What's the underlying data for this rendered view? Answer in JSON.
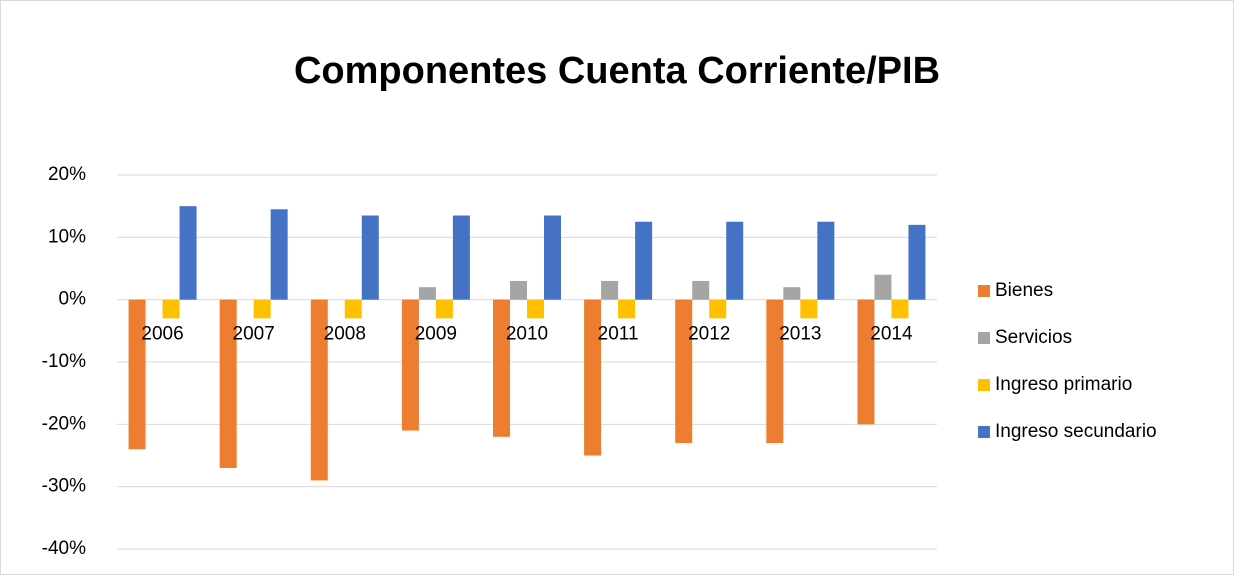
{
  "chart_data": {
    "type": "bar",
    "title": "Componentes Cuenta Corriente/PIB",
    "categories": [
      "2006",
      "2007",
      "2008",
      "2009",
      "2010",
      "2011",
      "2012",
      "2013",
      "2014"
    ],
    "series": [
      {
        "name": "Bienes",
        "color": "#ed7d31",
        "values": [
          -24,
          -27,
          -29,
          -21,
          -22,
          -25,
          -23,
          -23,
          -20
        ]
      },
      {
        "name": "Servicios",
        "color": "#a5a5a5",
        "values": [
          0,
          0,
          0,
          2,
          3,
          3,
          3,
          2,
          4
        ]
      },
      {
        "name": "Ingreso primario",
        "color": "#ffc000",
        "values": [
          -3,
          -3,
          -3,
          -3,
          -3,
          -3,
          -3,
          -3,
          -3
        ]
      },
      {
        "name": "Ingreso secundario",
        "color": "#4472c4",
        "values": [
          15,
          14.5,
          13.5,
          13.5,
          13.5,
          12.5,
          12.5,
          12.5,
          12
        ]
      }
    ],
    "ylim": [
      -40,
      20
    ],
    "yticks": [
      {
        "value": -40,
        "label": "-40%"
      },
      {
        "value": -30,
        "label": "-30%"
      },
      {
        "value": -20,
        "label": "-20%"
      },
      {
        "value": -10,
        "label": "-10%"
      },
      {
        "value": 0,
        "label": "0%"
      },
      {
        "value": 10,
        "label": "10%"
      },
      {
        "value": 20,
        "label": "20%"
      }
    ],
    "grid": true,
    "legend": "right"
  }
}
